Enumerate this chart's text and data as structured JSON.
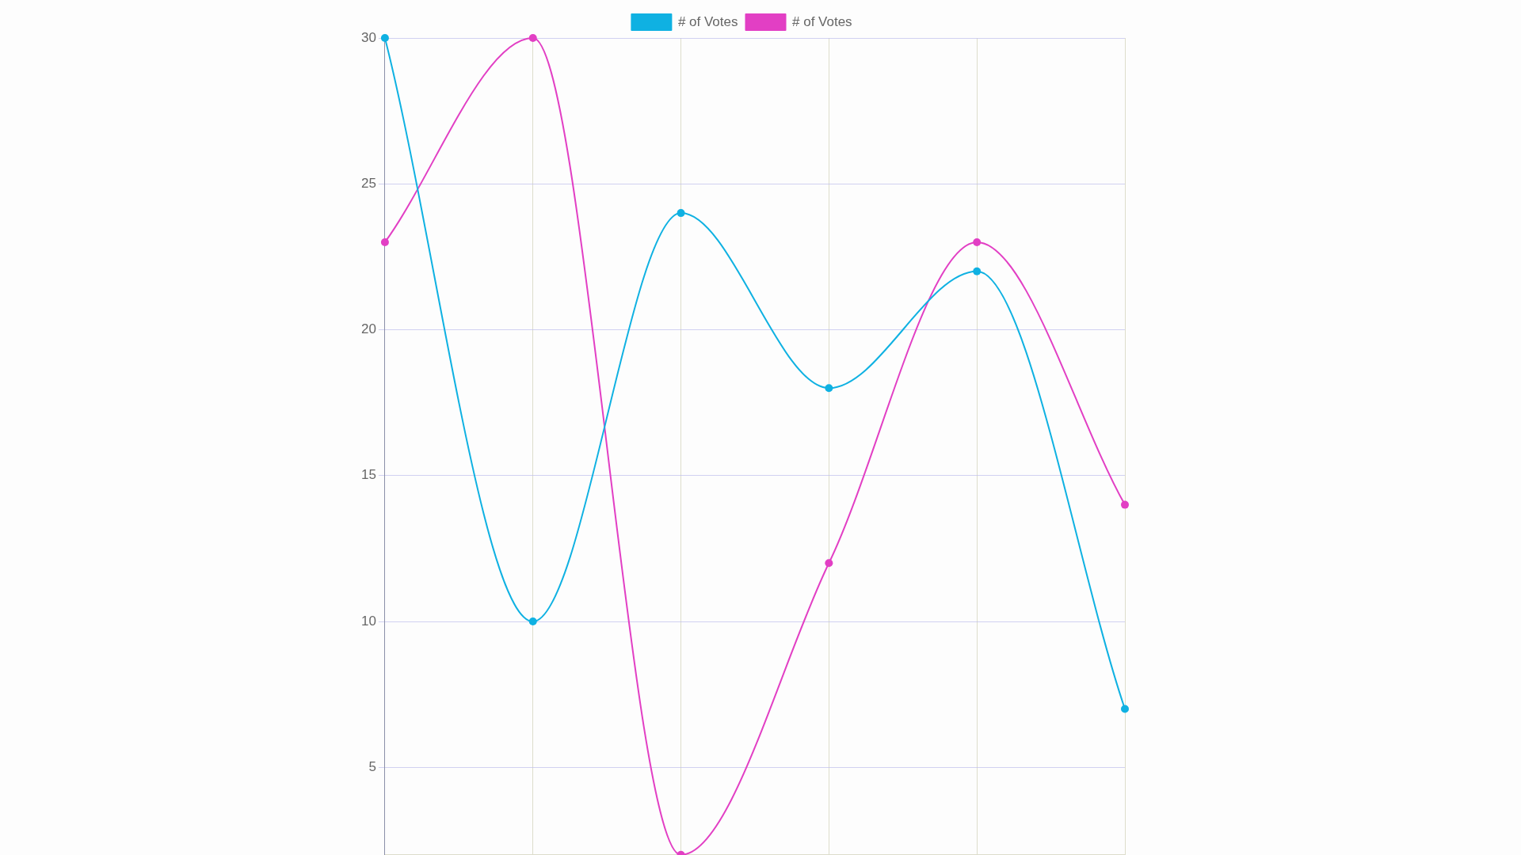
{
  "chart_data": {
    "type": "line",
    "categories": [
      null,
      null,
      null,
      null,
      null,
      null
    ],
    "series": [
      {
        "name": "# of Votes",
        "color": "#0fb1e2",
        "values": [
          30,
          10,
          24,
          18,
          22,
          7
        ]
      },
      {
        "name": "# of Votes",
        "color": "#e23fc4",
        "values": [
          23,
          30,
          2,
          12,
          23,
          14
        ]
      }
    ],
    "ylim": [
      2,
      30
    ],
    "yticks": [
      5,
      10,
      15,
      20,
      25,
      30
    ],
    "grid": true,
    "legend": "top",
    "marker": "circle",
    "line_style": "solid",
    "tick_labels": "y"
  }
}
